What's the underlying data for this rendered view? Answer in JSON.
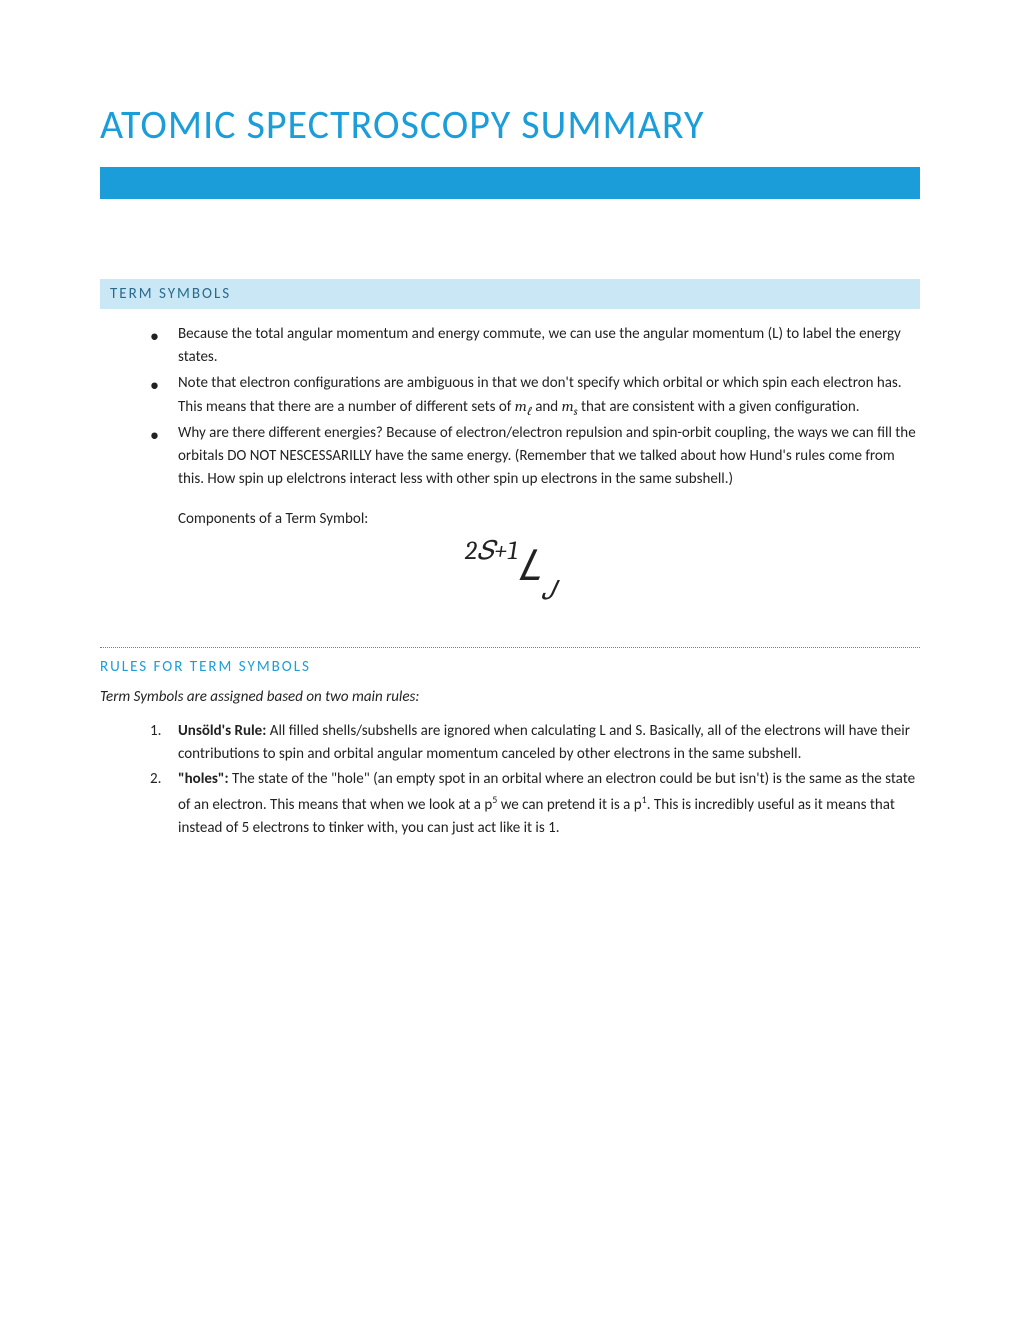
{
  "colors": {
    "title": "#1b9dd9",
    "bar": "#1b9dd9",
    "section_bg": "#c9e7f5",
    "section_text": "#2a6a8c",
    "subheading": "#1b9dd9",
    "divider": "#1b9dd9",
    "body_text": "#222222"
  },
  "title": "ATOMIC SPECTROSCOPY SUMMARY",
  "section1": {
    "heading": "TERM SYMBOLS",
    "bullets": [
      "Because the total angular momentum and energy commute, we can use the angular momentum (L) to label the energy states.",
      "Note that electron configurations are ambiguous in that we don't specify which orbital or which spin each electron has.  This means that there are a number of different sets of 𝑚ℓ and 𝑚𝑠 that are consistent with a given configuration.",
      "Why are there different energies?  Because of electron/electron repulsion and spin-orbit coupling, the ways we can fill the orbitals DO NOT NESCESSARILLY have the same energy. (Remember that we talked about how Hund's rules come from this.  How spin up elelctrons interact less with other spin up electrons in the same subshell.)"
    ],
    "components_label": "Components of a Term Symbol:",
    "formula": {
      "superscript": "2𝑆+1",
      "main": "𝐿",
      "subscript": "𝐽"
    }
  },
  "section2": {
    "heading": "RULES FOR TERM SYMBOLS",
    "intro": "Term Symbols are assigned based on two main rules:",
    "rules": [
      {
        "label": "Unsöld's Rule:",
        "text": " All filled shells/subshells are ignored when calculating L and S.  Basically, all of the electrons will have their contributions to spin and orbital angular momentum canceled by other electrons in the same subshell."
      },
      {
        "label": "\"holes\":",
        "text_part1": "  The state of the \"hole\" (an empty spot in an orbital where an electron could be but isn't) is the same as the state of an electron.  This means that when we look at a p",
        "sup1": "5",
        "text_part2": " we can pretend it is a p",
        "sup2": "1",
        "text_part3": ".  This is incredibly useful as it means that instead of 5 electrons to tinker with, you can just act like it is 1."
      }
    ]
  }
}
